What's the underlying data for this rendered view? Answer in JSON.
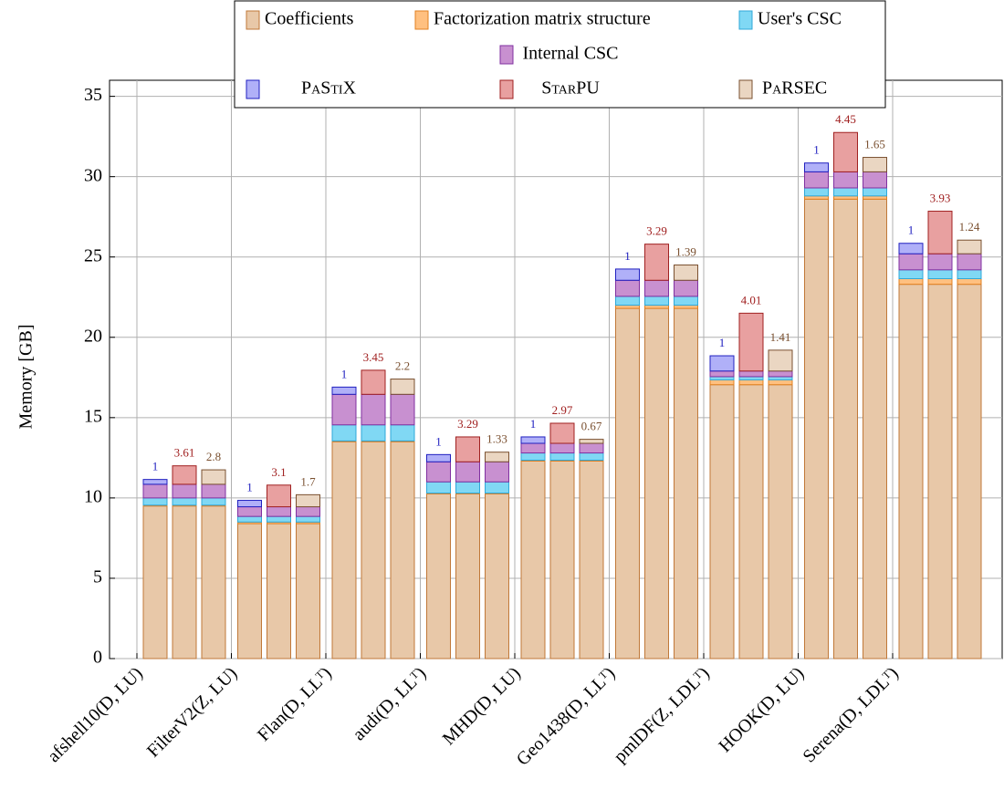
{
  "chart_data": {
    "type": "stacked-grouped-bar",
    "y_label": "Memory [GB]",
    "categories": [
      "afshell10(D, LU)",
      "FilterV2(Z, LU)",
      "Flan(D, LLᵀ)",
      "audi(D, LLᵀ)",
      "MHD(D, LU)",
      "Geo1438(D, LLᵀ)",
      "pmlDF(Z, LDLᵀ)",
      "HOOK(D, LU)",
      "Serena(D, LDLᵀ)"
    ],
    "series": [
      {
        "name": "Coefficients",
        "color": "#e8c8a8",
        "stroke": "#c07838",
        "values": [
          9.5,
          8.4,
          13.5,
          10.25,
          12.3,
          21.8,
          17.05,
          28.6,
          23.3
        ]
      },
      {
        "name": "Factorization matrix structure",
        "color": "#ffc080",
        "stroke": "#e08020",
        "values": [
          0.05,
          0.1,
          0.05,
          0.05,
          0.05,
          0.2,
          0.3,
          0.2,
          0.35
        ]
      },
      {
        "name": "User's CSC",
        "color": "#80d8f4",
        "stroke": "#30a8d8",
        "values": [
          0.45,
          0.35,
          1.0,
          0.7,
          0.45,
          0.55,
          0.2,
          0.5,
          0.55
        ]
      },
      {
        "name": "Internal CSC",
        "color": "#c890d0",
        "stroke": "#8030a0",
        "values": [
          0.85,
          0.6,
          1.9,
          1.25,
          0.6,
          1.0,
          0.35,
          1.0,
          1.0
        ]
      }
    ],
    "runtimes": [
      {
        "name": "PaStiX",
        "color": "#b0b0f8",
        "stroke": "#2020c0",
        "overhead": [
          0.3,
          0.4,
          0.45,
          0.45,
          0.4,
          0.7,
          0.95,
          0.55,
          0.65
        ],
        "ratios": [
          1,
          1,
          1,
          1,
          1,
          1,
          1,
          1,
          1
        ]
      },
      {
        "name": "StarPU",
        "color": "#e8a0a0",
        "stroke": "#a02020",
        "overhead": [
          1.15,
          1.35,
          1.5,
          1.55,
          1.25,
          2.25,
          3.6,
          2.45,
          2.65
        ],
        "ratios": [
          3.61,
          3.1,
          3.45,
          3.29,
          2.97,
          3.29,
          4.01,
          4.45,
          3.93
        ]
      },
      {
        "name": "PaRSEC",
        "color": "#ead6c2",
        "stroke": "#7a5030",
        "overhead": [
          0.9,
          0.75,
          0.95,
          0.6,
          0.25,
          0.95,
          1.3,
          0.9,
          0.85
        ],
        "ratios": [
          2.8,
          1.7,
          2.2,
          1.33,
          0.67,
          1.39,
          1.41,
          1.65,
          1.24
        ]
      }
    ],
    "ylim": [
      0,
      36
    ],
    "yticks": [
      0,
      5,
      10,
      15,
      20,
      25,
      30,
      35
    ],
    "grid": true,
    "legend": "top"
  }
}
